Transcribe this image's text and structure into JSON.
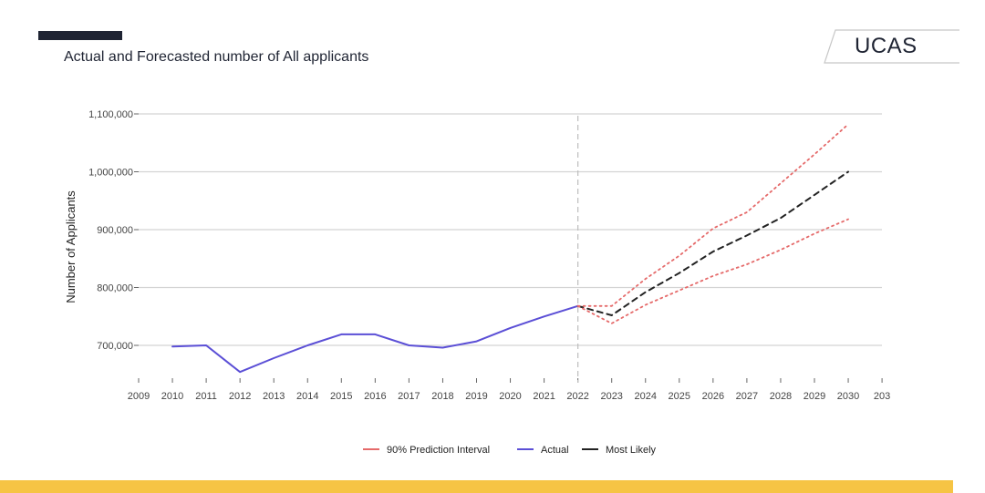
{
  "header": {
    "title": "Actual and Forecasted number of All applicants",
    "logo_text": "UCAS"
  },
  "colors": {
    "actual": "#5b4fd6",
    "interval": "#e56a6a",
    "likely": "#222222",
    "accent_bar": "#1f2433",
    "footer_band": "#f6c444"
  },
  "chart_data": {
    "type": "line",
    "title": "Actual and Forecasted number of All applicants",
    "xlabel": "",
    "ylabel": "Number of Applicants",
    "xlim": [
      2009,
      2031
    ],
    "ylim": [
      640000,
      1110000
    ],
    "x_ticks": [
      "2009",
      "2010",
      "2011",
      "2012",
      "2013",
      "2014",
      "2015",
      "2016",
      "2017",
      "2018",
      "2019",
      "2020",
      "2021",
      "2022",
      "2023",
      "2024",
      "2025",
      "2026",
      "2027",
      "2028",
      "2029",
      "2030",
      "203"
    ],
    "y_ticks": [
      {
        "value": 700000,
        "label": "700,000"
      },
      {
        "value": 800000,
        "label": "800,000"
      },
      {
        "value": 900000,
        "label": "900,000"
      },
      {
        "value": 1000000,
        "label": "1,000,000"
      },
      {
        "value": 1100000,
        "label": "1,100,000"
      }
    ],
    "grid": "horizontal",
    "divider_x": 2022,
    "series": [
      {
        "name": "Actual",
        "style": "solid",
        "x": [
          2010,
          2011,
          2012,
          2013,
          2014,
          2015,
          2016,
          2017,
          2018,
          2019,
          2020,
          2021,
          2022
        ],
        "y": [
          698000,
          700000,
          654000,
          678000,
          700000,
          719000,
          719000,
          700000,
          696000,
          707000,
          730000,
          750000,
          768000
        ]
      },
      {
        "name": "Most Likely",
        "style": "dashed",
        "x": [
          2022,
          2023,
          2024,
          2025,
          2026,
          2027,
          2028,
          2029,
          2030
        ],
        "y": [
          768000,
          752000,
          792000,
          825000,
          862000,
          890000,
          920000,
          960000,
          1000000
        ]
      },
      {
        "name": "90% Prediction Interval",
        "style": "dotted",
        "bound": "upper",
        "x": [
          2022,
          2023,
          2024,
          2025,
          2026,
          2027,
          2028,
          2029,
          2030
        ],
        "y": [
          768000,
          768000,
          815000,
          855000,
          902000,
          930000,
          980000,
          1030000,
          1082000
        ]
      },
      {
        "name": "90% Prediction Interval",
        "style": "dotted",
        "bound": "lower",
        "x": [
          2022,
          2023,
          2024,
          2025,
          2026,
          2027,
          2028,
          2029,
          2030
        ],
        "y": [
          768000,
          738000,
          770000,
          795000,
          820000,
          840000,
          865000,
          893000,
          918000
        ]
      }
    ],
    "legend": {
      "placement": "bottom-center",
      "items": [
        "90% Prediction Interval",
        "Actual",
        "Most Likely"
      ]
    }
  }
}
